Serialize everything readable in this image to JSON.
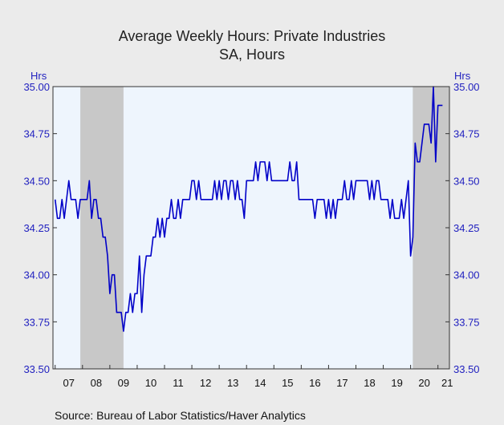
{
  "chart_data": {
    "type": "line",
    "title": "Average Weekly Hours: Private Industries",
    "subtitle": "SA, Hours",
    "y_unit_left": "Hrs",
    "y_unit_right": "Hrs",
    "ylim": [
      33.5,
      35.0
    ],
    "y_ticks": [
      "35.00",
      "34.75",
      "34.50",
      "34.25",
      "34.00",
      "33.75",
      "33.50"
    ],
    "x_tick_labels": [
      "07",
      "08",
      "09",
      "10",
      "11",
      "12",
      "13",
      "14",
      "15",
      "16",
      "17",
      "18",
      "19",
      "20",
      "21"
    ],
    "x_range": [
      2006.92,
      2021.42
    ],
    "source": "Source:  Bureau of Labor Statistics/Haver Analytics",
    "recessions": [
      [
        2007.92,
        2009.5
      ],
      [
        2020.08,
        2021.42
      ]
    ],
    "colors": {
      "line": "#0000c8",
      "plot_background": "#eef5fd",
      "recession_shade": "#c8c8c8",
      "axis_text": "#1f1fbf"
    },
    "series": [
      {
        "start_year": 2007,
        "start_month": 1,
        "values": [
          34.4,
          34.3,
          34.3,
          34.4,
          34.3,
          34.4,
          34.5,
          34.4,
          34.4,
          34.4,
          34.3,
          34.4,
          34.4,
          34.4,
          34.4,
          34.5,
          34.3,
          34.4,
          34.4,
          34.3,
          34.3,
          34.2,
          34.2,
          34.1,
          33.9,
          34.0,
          34.0,
          33.8,
          33.8,
          33.8,
          33.7,
          33.8,
          33.8,
          33.9,
          33.8,
          33.9,
          33.9,
          34.1,
          33.8,
          34.0,
          34.1,
          34.1,
          34.1,
          34.2,
          34.2,
          34.3,
          34.2,
          34.3,
          34.2,
          34.3,
          34.3,
          34.4,
          34.3,
          34.3,
          34.4,
          34.3,
          34.4,
          34.4,
          34.4,
          34.4,
          34.5,
          34.5,
          34.4,
          34.5,
          34.4,
          34.4,
          34.4,
          34.4,
          34.4,
          34.4,
          34.5,
          34.4,
          34.5,
          34.4,
          34.5,
          34.5,
          34.4,
          34.5,
          34.5,
          34.4,
          34.5,
          34.4,
          34.4,
          34.3,
          34.5,
          34.5,
          34.5,
          34.5,
          34.6,
          34.5,
          34.6,
          34.6,
          34.6,
          34.5,
          34.6,
          34.5,
          34.5,
          34.5,
          34.5,
          34.5,
          34.5,
          34.5,
          34.5,
          34.6,
          34.5,
          34.5,
          34.6,
          34.4,
          34.4,
          34.4,
          34.4,
          34.4,
          34.4,
          34.4,
          34.3,
          34.4,
          34.4,
          34.4,
          34.4,
          34.3,
          34.4,
          34.3,
          34.4,
          34.3,
          34.4,
          34.4,
          34.4,
          34.5,
          34.4,
          34.4,
          34.5,
          34.4,
          34.5,
          34.5,
          34.5,
          34.5,
          34.5,
          34.5,
          34.4,
          34.5,
          34.4,
          34.5,
          34.5,
          34.4,
          34.4,
          34.4,
          34.4,
          34.3,
          34.4,
          34.3,
          34.3,
          34.3,
          34.4,
          34.3,
          34.4,
          34.5,
          34.1,
          34.2,
          34.7,
          34.6,
          34.6,
          34.7,
          34.8,
          34.8,
          34.8,
          34.7,
          35.0,
          34.6,
          34.9,
          34.9,
          34.9
        ]
      }
    ]
  }
}
